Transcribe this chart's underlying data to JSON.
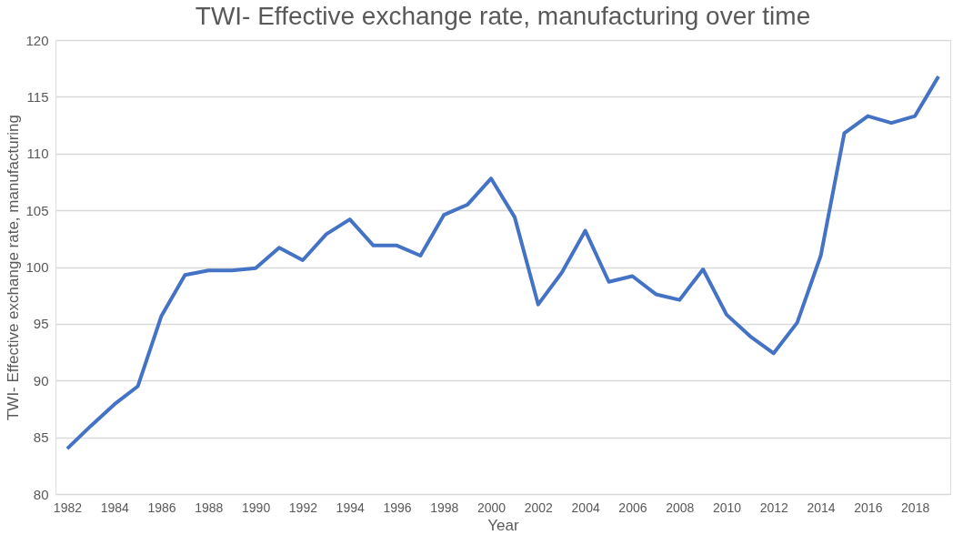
{
  "chart_data": {
    "type": "line",
    "title": "TWI- Effective exchange rate, manufacturing over time",
    "xlabel": "Year",
    "ylabel": "TWI- Effective exchange rate, manufacturing",
    "categories": [
      "1982",
      null,
      "1984",
      null,
      "1986",
      null,
      "1988",
      null,
      "1990",
      null,
      "1992",
      null,
      "1994",
      null,
      "1996",
      null,
      "1998",
      null,
      "2000",
      null,
      "2002",
      null,
      "2004",
      null,
      "2006",
      null,
      "2008",
      null,
      "2010",
      null,
      "2012",
      null,
      "2014",
      null,
      "2016",
      null,
      "2018",
      null
    ],
    "series": [
      {
        "color": "#4472c4",
        "values": [
          84.0,
          86.0,
          87.9,
          89.5,
          95.7,
          99.3,
          99.7,
          99.7,
          99.9,
          101.7,
          100.6,
          102.9,
          104.2,
          101.9,
          101.9,
          101.0,
          104.6,
          105.5,
          107.8,
          104.4,
          96.7,
          99.5,
          103.2,
          98.7,
          99.2,
          97.6,
          97.1,
          99.8,
          95.8,
          93.9,
          92.4,
          95.1,
          101.0,
          111.8,
          113.3,
          112.7,
          113.3,
          116.8
        ]
      }
    ],
    "ylim": [
      80,
      120
    ],
    "yticks": [
      80,
      85,
      90,
      95,
      100,
      105,
      110,
      115,
      120
    ],
    "grid": "y",
    "marker": "none",
    "line_style": "solid"
  }
}
